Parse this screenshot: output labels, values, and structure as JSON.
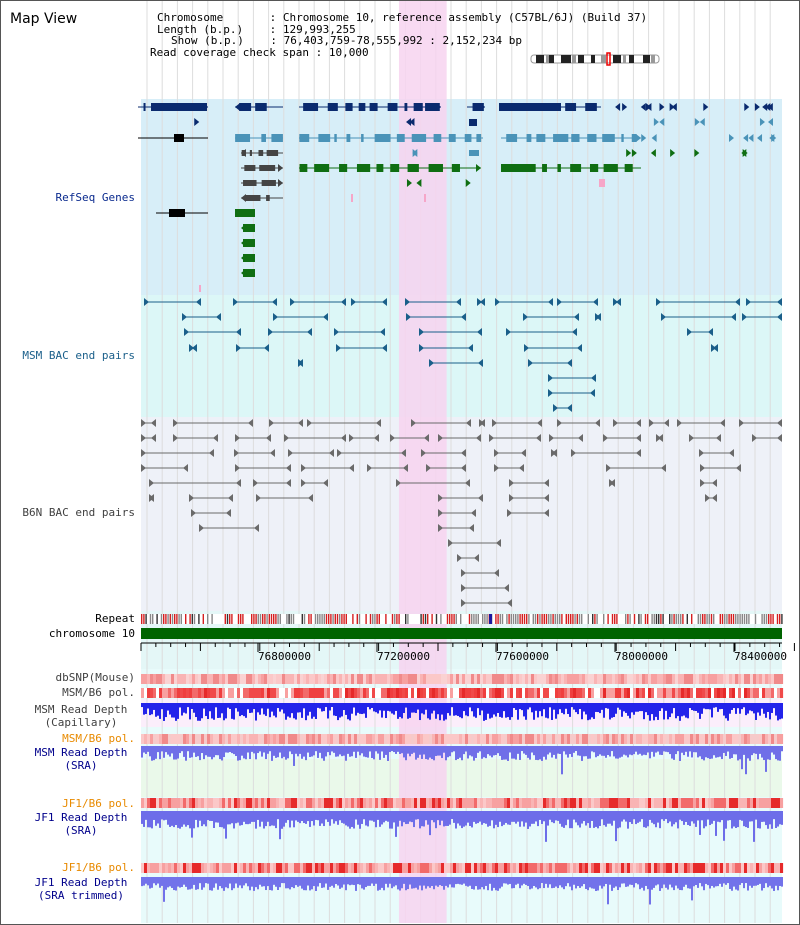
{
  "header": {
    "title": "Map View",
    "chromosome_key": "Chromosome",
    "chromosome_value": "Chromosome 10, reference assembly (C57BL/6J) (Build 37)",
    "length_key": "Length (b.p.)",
    "length_value": "129,993,255",
    "show_key": "Show (b.p.)",
    "show_value": "76,403,759-78,555,992 : 2,152,234 bp",
    "coverage_key": "Read coverage check span",
    "coverage_value": "10,000"
  },
  "tracks": {
    "refseq": "RefSeq Genes",
    "msm_bac": "MSM BAC end pairs",
    "b6n_bac": "B6N BAC end pairs",
    "repeat": "Repeat",
    "chromosome": "chromosome 10",
    "dbsnp": "dbSNP(Mouse)",
    "msm_b6_pol_1": "MSM/B6 pol.",
    "msm_depth_cap_1": "MSM Read Depth",
    "msm_depth_cap_2": "(Capillary)",
    "msm_b6_pol_2": "MSM/B6 pol.",
    "msm_depth_sra_1": "MSM Read Depth",
    "msm_depth_sra_2": "(SRA)",
    "jf1_b6_pol_1": "JF1/B6 pol.",
    "jf1_depth_sra_1": "JF1 Read Depth",
    "jf1_depth_sra_2": "(SRA)",
    "jf1_b6_pol_2": "JF1/B6 pol.",
    "jf1_depth_trim_1": "JF1 Read Depth",
    "jf1_depth_trim_2": "(SRA trimmed)"
  },
  "axis": {
    "ticks": [
      "76800000",
      "77200000",
      "77600000",
      "78000000",
      "78400000"
    ],
    "range_start": 76403759,
    "range_end": 78555992,
    "highlight_start": 77270000,
    "highlight_end": 77430000
  },
  "colors": {
    "refseq_bg": "#d7eef8",
    "msm_bg": "#dcf7f7",
    "b6n_bg": "#eef1f8",
    "highlight": "#f7d4f0",
    "chromosome_bar": "#006400",
    "dark_blue": "#0a2a6e",
    "mid_blue": "#4a93b8",
    "green": "#0f6e12",
    "msm_label": "#1a5f8a",
    "refseq_label": "#0a2a8e",
    "orange_label": "#e88a00",
    "depth_label": "#00008b",
    "gray_label": "#404040",
    "depth_blue": "#2f2fdd",
    "depth_light_blue": "#7373ee"
  }
}
